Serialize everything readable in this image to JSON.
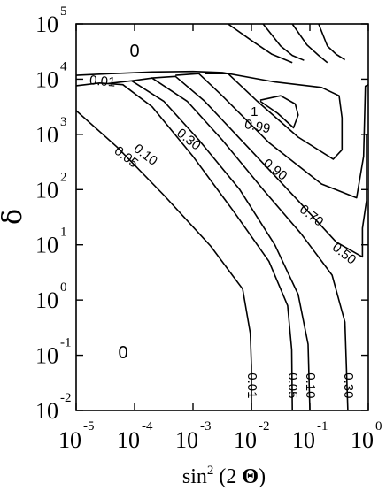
{
  "chart_data": {
    "type": "contour",
    "x_axis": {
      "label_base": "sin",
      "label_power": "2",
      "label_rest": " (2 ",
      "label_symbol": "Θ",
      "label_close": ")",
      "scale": "log",
      "range": [
        1e-05,
        1
      ],
      "ticks": [
        {
          "base": "10",
          "exp": "-5"
        },
        {
          "base": "10",
          "exp": "-4"
        },
        {
          "base": "10",
          "exp": "-3"
        },
        {
          "base": "10",
          "exp": "-2"
        },
        {
          "base": "10",
          "exp": "-1"
        },
        {
          "base": "10",
          "exp": "0"
        }
      ]
    },
    "y_axis": {
      "label": "δ",
      "scale": "log",
      "range": [
        0.01,
        100000
      ],
      "ticks": [
        {
          "base": "10",
          "exp": "-2"
        },
        {
          "base": "10",
          "exp": "-1"
        },
        {
          "base": "10",
          "exp": "0"
        },
        {
          "base": "10",
          "exp": "1"
        },
        {
          "base": "10",
          "exp": "2"
        },
        {
          "base": "10",
          "exp": "3"
        },
        {
          "base": "10",
          "exp": "4"
        },
        {
          "base": "10",
          "exp": "5"
        }
      ]
    },
    "contour_levels": [
      "0.01",
      "0.05",
      "0.10",
      "0.30",
      "0.50",
      "0.70",
      "0.90",
      "0.99",
      "1"
    ],
    "region_labels": [
      "0",
      "0"
    ]
  }
}
